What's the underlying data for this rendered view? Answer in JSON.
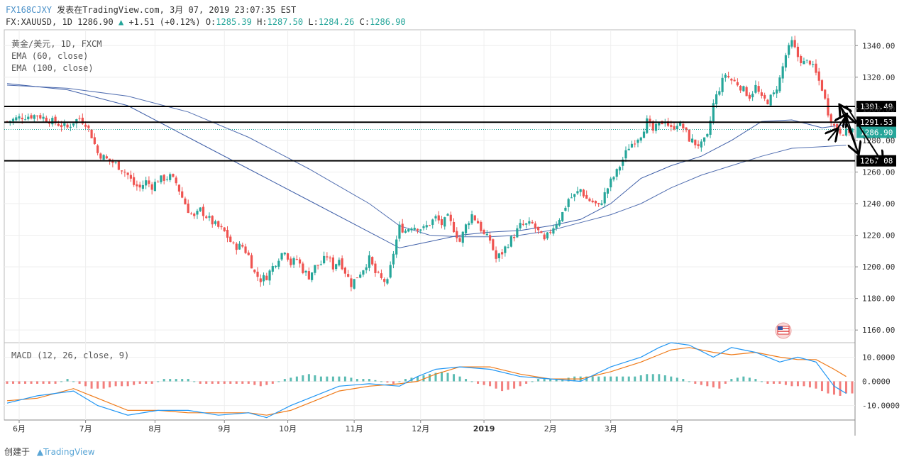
{
  "header": {
    "source_id": "FX168CJXY",
    "published_text": "发表在TradingView.com, 3月 07, 2019 23:07:35 EST",
    "symbol": "FX:XAUUSD, 1D",
    "last": "1286.90",
    "change": "+1.51 (+0.12%)",
    "o_label": "O:",
    "o_value": "1285.39",
    "h_label": "H:",
    "h_value": "1287.50",
    "l_label": "L:",
    "l_value": "1284.26",
    "c_label": "C:",
    "c_value": "1286.90"
  },
  "legend": {
    "instrument": "黄金/美元, 1D, FXCM",
    "ema60": "EMA (60, close)",
    "ema100": "EMA (100, close)",
    "macd": "MACD (12, 26, close, 9)"
  },
  "footer": {
    "created_by": "创建于",
    "brand": "TradingView"
  },
  "colors": {
    "up": "#26a69a",
    "down": "#ef5350",
    "ema_line": "#3f5fa8",
    "macd_line": "#2196f3",
    "signal_line": "#ef7b1a",
    "hist_up": "#26a69a",
    "hist_down": "#ef5350",
    "last_price_badge": "#26a69a",
    "level_badge": "#000000",
    "grid": "#eeeeee"
  },
  "chart_data": {
    "type": "candlestick",
    "x_ticks": [
      "6月",
      "7月",
      "8月",
      "9月",
      "10月",
      "11月",
      "12月",
      "2019",
      "2月",
      "3月",
      "4月"
    ],
    "y_ticks": [
      "1340.00",
      "1320.00",
      "1300.00",
      "1280.00",
      "1260.00",
      "1240.00",
      "1220.00",
      "1200.00",
      "1180.00",
      "1160.00"
    ],
    "ylim": [
      1152,
      1350
    ],
    "last_price": 1286.9,
    "levels": [
      1301.49,
      1291.53,
      1267.08
    ],
    "close_path": [
      [
        0,
        1292
      ],
      [
        5,
        1295
      ],
      [
        10,
        1296
      ],
      [
        15,
        1292
      ],
      [
        20,
        1288
      ],
      [
        22,
        1292
      ],
      [
        24,
        1294
      ],
      [
        26,
        1291
      ],
      [
        28,
        1283
      ],
      [
        30,
        1272
      ],
      [
        33,
        1268
      ],
      [
        36,
        1265
      ],
      [
        38,
        1262
      ],
      [
        40,
        1258
      ],
      [
        42,
        1252
      ],
      [
        44,
        1250
      ],
      [
        46,
        1254
      ],
      [
        48,
        1251
      ],
      [
        50,
        1255
      ],
      [
        54,
        1257
      ],
      [
        56,
        1253
      ],
      [
        58,
        1244
      ],
      [
        60,
        1236
      ],
      [
        62,
        1231
      ],
      [
        64,
        1236
      ],
      [
        66,
        1232
      ],
      [
        68,
        1228
      ],
      [
        70,
        1225
      ],
      [
        72,
        1222
      ],
      [
        75,
        1213
      ],
      [
        78,
        1213
      ],
      [
        80,
        1207
      ],
      [
        82,
        1196
      ],
      [
        84,
        1192
      ],
      [
        86,
        1194
      ],
      [
        88,
        1200
      ],
      [
        90,
        1206
      ],
      [
        92,
        1211
      ],
      [
        94,
        1202
      ],
      [
        96,
        1205
      ],
      [
        98,
        1198
      ],
      [
        100,
        1194
      ],
      [
        102,
        1200
      ],
      [
        104,
        1202
      ],
      [
        106,
        1207
      ],
      [
        108,
        1200
      ],
      [
        110,
        1205
      ],
      [
        112,
        1197
      ],
      [
        114,
        1189
      ],
      [
        116,
        1194
      ],
      [
        118,
        1199
      ],
      [
        120,
        1205
      ],
      [
        122,
        1196
      ],
      [
        124,
        1192
      ],
      [
        126,
        1190
      ],
      [
        128,
        1209
      ],
      [
        130,
        1225
      ],
      [
        132,
        1223
      ],
      [
        134,
        1226
      ],
      [
        138,
        1224
      ],
      [
        142,
        1231
      ],
      [
        144,
        1227
      ],
      [
        146,
        1231
      ],
      [
        148,
        1224
      ],
      [
        150,
        1216
      ],
      [
        152,
        1226
      ],
      [
        154,
        1233
      ],
      [
        156,
        1228
      ],
      [
        158,
        1220
      ],
      [
        160,
        1217
      ],
      [
        162,
        1205
      ],
      [
        164,
        1209
      ],
      [
        166,
        1215
      ],
      [
        168,
        1220
      ],
      [
        170,
        1226
      ],
      [
        174,
        1227
      ],
      [
        176,
        1222
      ],
      [
        178,
        1216
      ],
      [
        180,
        1223
      ],
      [
        182,
        1228
      ],
      [
        184,
        1234
      ],
      [
        186,
        1243
      ],
      [
        188,
        1245
      ],
      [
        190,
        1249
      ],
      [
        192,
        1243
      ],
      [
        194,
        1241
      ],
      [
        196,
        1238
      ],
      [
        198,
        1246
      ],
      [
        200,
        1254
      ],
      [
        202,
        1260
      ],
      [
        204,
        1268
      ],
      [
        206,
        1276
      ],
      [
        208,
        1280
      ],
      [
        210,
        1284
      ],
      [
        212,
        1292
      ],
      [
        214,
        1286
      ],
      [
        216,
        1290
      ],
      [
        218,
        1293
      ],
      [
        220,
        1287
      ],
      [
        222,
        1291
      ],
      [
        224,
        1288
      ],
      [
        226,
        1281
      ],
      [
        228,
        1278
      ],
      [
        230,
        1277
      ],
      [
        232,
        1282
      ],
      [
        234,
        1303
      ],
      [
        236,
        1313
      ],
      [
        238,
        1322
      ],
      [
        240,
        1318
      ],
      [
        242,
        1316
      ],
      [
        244,
        1312
      ],
      [
        246,
        1308
      ],
      [
        248,
        1314
      ],
      [
        250,
        1306
      ],
      [
        252,
        1305
      ],
      [
        254,
        1309
      ],
      [
        256,
        1319
      ],
      [
        258,
        1334
      ],
      [
        260,
        1342
      ],
      [
        262,
        1333
      ],
      [
        264,
        1329
      ],
      [
        266,
        1330
      ],
      [
        268,
        1322
      ],
      [
        270,
        1313
      ],
      [
        272,
        1298
      ],
      [
        274,
        1289
      ],
      [
        276,
        1286
      ],
      [
        278,
        1285
      ],
      [
        280,
        1287
      ]
    ],
    "ema60_path": [
      [
        0,
        1316
      ],
      [
        20,
        1312
      ],
      [
        40,
        1302
      ],
      [
        60,
        1282
      ],
      [
        80,
        1262
      ],
      [
        100,
        1242
      ],
      [
        120,
        1222
      ],
      [
        130,
        1212
      ],
      [
        140,
        1216
      ],
      [
        150,
        1220
      ],
      [
        160,
        1222
      ],
      [
        170,
        1223
      ],
      [
        180,
        1226
      ],
      [
        190,
        1230
      ],
      [
        200,
        1240
      ],
      [
        210,
        1256
      ],
      [
        220,
        1264
      ],
      [
        230,
        1270
      ],
      [
        240,
        1280
      ],
      [
        250,
        1292
      ],
      [
        260,
        1293
      ],
      [
        270,
        1288
      ],
      [
        278,
        1290
      ]
    ],
    "ema100_path": [
      [
        0,
        1315
      ],
      [
        20,
        1313
      ],
      [
        40,
        1308
      ],
      [
        60,
        1298
      ],
      [
        80,
        1282
      ],
      [
        100,
        1262
      ],
      [
        120,
        1240
      ],
      [
        130,
        1226
      ],
      [
        140,
        1220
      ],
      [
        150,
        1219
      ],
      [
        160,
        1219
      ],
      [
        170,
        1220
      ],
      [
        180,
        1223
      ],
      [
        190,
        1228
      ],
      [
        200,
        1233
      ],
      [
        210,
        1240
      ],
      [
        220,
        1250
      ],
      [
        230,
        1258
      ],
      [
        240,
        1264
      ],
      [
        250,
        1270
      ],
      [
        260,
        1275
      ],
      [
        270,
        1276
      ],
      [
        278,
        1277
      ]
    ],
    "arrows": [
      [
        [
          272,
          1280
        ],
        [
          275,
          1287
        ]
      ],
      [
        [
          275,
          1287
        ],
        [
          278,
          1296
        ]
      ],
      [
        [
          278,
          1296
        ],
        [
          276,
          1302
        ]
      ],
      [
        [
          276,
          1302
        ],
        [
          282,
          1272
        ]
      ],
      [
        [
          282,
          1272
        ],
        [
          278,
          1296
        ]
      ],
      [
        [
          278,
          1302
        ],
        [
          290,
          1266
        ]
      ]
    ],
    "macd": {
      "y_ticks": [
        "10.0000",
        "0.0000",
        "-10.0000"
      ],
      "ylim": [
        -16,
        16
      ],
      "macd_path": [
        [
          0,
          -9
        ],
        [
          10,
          -6
        ],
        [
          22,
          -4
        ],
        [
          30,
          -10
        ],
        [
          40,
          -14
        ],
        [
          50,
          -12
        ],
        [
          60,
          -12
        ],
        [
          70,
          -14
        ],
        [
          80,
          -13
        ],
        [
          86,
          -15
        ],
        [
          94,
          -10
        ],
        [
          102,
          -6
        ],
        [
          110,
          -2
        ],
        [
          120,
          -1
        ],
        [
          130,
          -2
        ],
        [
          136,
          2
        ],
        [
          142,
          5
        ],
        [
          150,
          6
        ],
        [
          160,
          5
        ],
        [
          170,
          2
        ],
        [
          180,
          1
        ],
        [
          190,
          0
        ],
        [
          200,
          6
        ],
        [
          210,
          10
        ],
        [
          216,
          14
        ],
        [
          220,
          16
        ],
        [
          226,
          15
        ],
        [
          234,
          10
        ],
        [
          240,
          14
        ],
        [
          248,
          12
        ],
        [
          256,
          8
        ],
        [
          262,
          10
        ],
        [
          268,
          8
        ],
        [
          274,
          -2
        ],
        [
          278,
          -5
        ]
      ],
      "signal_path": [
        [
          0,
          -8
        ],
        [
          10,
          -7
        ],
        [
          22,
          -3
        ],
        [
          30,
          -7
        ],
        [
          40,
          -12
        ],
        [
          50,
          -12
        ],
        [
          60,
          -13
        ],
        [
          70,
          -13
        ],
        [
          80,
          -13
        ],
        [
          86,
          -14
        ],
        [
          94,
          -12
        ],
        [
          102,
          -8
        ],
        [
          110,
          -4
        ],
        [
          120,
          -2
        ],
        [
          130,
          -1
        ],
        [
          136,
          0
        ],
        [
          142,
          3
        ],
        [
          150,
          6
        ],
        [
          160,
          6
        ],
        [
          170,
          3
        ],
        [
          180,
          1
        ],
        [
          190,
          1
        ],
        [
          200,
          4
        ],
        [
          210,
          8
        ],
        [
          216,
          11
        ],
        [
          220,
          13
        ],
        [
          226,
          14
        ],
        [
          234,
          12
        ],
        [
          240,
          11
        ],
        [
          248,
          12
        ],
        [
          256,
          10
        ],
        [
          262,
          9
        ],
        [
          268,
          9
        ],
        [
          274,
          5
        ],
        [
          278,
          2
        ]
      ],
      "hist": [
        [
          0,
          -1
        ],
        [
          4,
          -1
        ],
        [
          8,
          -1
        ],
        [
          12,
          -1
        ],
        [
          16,
          -1
        ],
        [
          20,
          1
        ],
        [
          24,
          -1
        ],
        [
          28,
          -3
        ],
        [
          32,
          -3
        ],
        [
          36,
          -2
        ],
        [
          40,
          -2
        ],
        [
          44,
          -1
        ],
        [
          48,
          -1
        ],
        [
          52,
          1
        ],
        [
          56,
          1
        ],
        [
          60,
          1
        ],
        [
          64,
          -1
        ],
        [
          68,
          -1
        ],
        [
          72,
          -1
        ],
        [
          76,
          -1
        ],
        [
          80,
          -1
        ],
        [
          84,
          -2
        ],
        [
          88,
          -1
        ],
        [
          92,
          1
        ],
        [
          96,
          2
        ],
        [
          100,
          3
        ],
        [
          104,
          2
        ],
        [
          108,
          2
        ],
        [
          112,
          2
        ],
        [
          116,
          1
        ],
        [
          120,
          1
        ],
        [
          124,
          0
        ],
        [
          128,
          -1
        ],
        [
          132,
          1
        ],
        [
          136,
          2
        ],
        [
          140,
          3
        ],
        [
          144,
          4
        ],
        [
          148,
          3
        ],
        [
          152,
          1
        ],
        [
          156,
          -1
        ],
        [
          160,
          -2
        ],
        [
          164,
          -4
        ],
        [
          168,
          -3
        ],
        [
          172,
          -1
        ],
        [
          176,
          1
        ],
        [
          180,
          1
        ],
        [
          184,
          1
        ],
        [
          188,
          2
        ],
        [
          192,
          2
        ],
        [
          196,
          2
        ],
        [
          200,
          2
        ],
        [
          204,
          2
        ],
        [
          208,
          2
        ],
        [
          212,
          3
        ],
        [
          216,
          3
        ],
        [
          220,
          2
        ],
        [
          224,
          1
        ],
        [
          228,
          -1
        ],
        [
          232,
          -2
        ],
        [
          236,
          -3
        ],
        [
          240,
          1
        ],
        [
          244,
          2
        ],
        [
          248,
          1
        ],
        [
          252,
          -1
        ],
        [
          256,
          -1
        ],
        [
          260,
          -2
        ],
        [
          264,
          -2
        ],
        [
          268,
          -3
        ],
        [
          272,
          -5
        ],
        [
          276,
          -6
        ],
        [
          278,
          -5
        ]
      ]
    }
  }
}
